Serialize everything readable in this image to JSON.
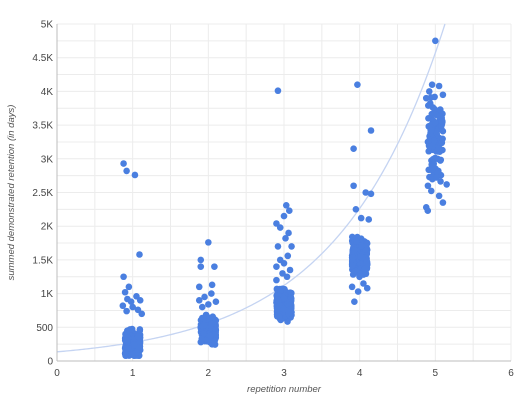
{
  "chart_data": {
    "type": "scatter",
    "xlabel": "repetition number",
    "ylabel": "summed demonstrated retention (in days)",
    "xlim": [
      0,
      6
    ],
    "ylim": [
      0,
      5000
    ],
    "xticks": [
      0,
      1,
      2,
      3,
      4,
      5,
      6
    ],
    "xtick_labels": [
      "0",
      "1",
      "2",
      "3",
      "4",
      "5",
      "6"
    ],
    "yticks": [
      0,
      500,
      1000,
      1500,
      2000,
      2500,
      3000,
      3500,
      4000,
      4500,
      5000
    ],
    "ytick_labels": [
      "0",
      "500",
      "1K",
      "1.5K",
      "2K",
      "2.5K",
      "3K",
      "3.5K",
      "4K",
      "4.5K",
      "5K"
    ],
    "grid": true,
    "legend": "none",
    "colors": {
      "points": "#4a7fe0",
      "trend": "#c5d4f2",
      "grid": "#ececec",
      "axis": "#bdbdbd"
    },
    "trendline": {
      "type": "exponential",
      "a": 136,
      "b": 0.703
    },
    "series": [
      {
        "clusters": [
          {
            "x_center": 1,
            "y_min": 80,
            "y_max": 650,
            "y_mean": 260,
            "count": 260,
            "outliers": [
              [
                0.88,
                2930
              ],
              [
                0.92,
                2820
              ],
              [
                1.03,
                2760
              ],
              [
                1.09,
                1580
              ],
              [
                0.88,
                1250
              ],
              [
                0.95,
                1100
              ],
              [
                0.9,
                1020
              ],
              [
                1.05,
                960
              ],
              [
                0.93,
                920
              ],
              [
                1.1,
                900
              ],
              [
                0.98,
                880
              ],
              [
                0.87,
                820
              ],
              [
                1.0,
                800
              ],
              [
                1.07,
                760
              ],
              [
                0.92,
                740
              ],
              [
                1.12,
                700
              ]
            ]
          },
          {
            "x_center": 2,
            "y_min": 230,
            "y_max": 760,
            "y_mean": 460,
            "count": 230,
            "outliers": [
              [
                2.0,
                1760
              ],
              [
                1.9,
                1500
              ],
              [
                2.08,
                1400
              ],
              [
                1.9,
                1400
              ],
              [
                2.05,
                1130
              ],
              [
                1.88,
                1100
              ],
              [
                2.04,
                1000
              ],
              [
                1.95,
                950
              ],
              [
                1.88,
                900
              ],
              [
                2.1,
                880
              ],
              [
                2.0,
                840
              ],
              [
                1.92,
                800
              ]
            ]
          },
          {
            "x_center": 3,
            "y_min": 520,
            "y_max": 1150,
            "y_mean": 820,
            "count": 280,
            "outliers": [
              [
                2.92,
                4010
              ],
              [
                3.03,
                2310
              ],
              [
                3.07,
                2230
              ],
              [
                3.0,
                2150
              ],
              [
                2.9,
                2040
              ],
              [
                2.95,
                1980
              ],
              [
                3.06,
                1900
              ],
              [
                3.02,
                1820
              ],
              [
                3.1,
                1700
              ],
              [
                2.92,
                1700
              ],
              [
                3.05,
                1560
              ],
              [
                2.95,
                1500
              ],
              [
                3.0,
                1450
              ],
              [
                2.9,
                1400
              ],
              [
                3.08,
                1350
              ],
              [
                2.98,
                1300
              ],
              [
                3.04,
                1250
              ],
              [
                2.9,
                1200
              ]
            ]
          },
          {
            "x_center": 4,
            "y_min": 1150,
            "y_max": 1950,
            "y_mean": 1550,
            "count": 300,
            "outliers": [
              [
                3.97,
                4100
              ],
              [
                4.15,
                3420
              ],
              [
                3.92,
                3150
              ],
              [
                3.92,
                2600
              ],
              [
                4.08,
                2500
              ],
              [
                4.15,
                2480
              ],
              [
                3.95,
                2250
              ],
              [
                4.02,
                2120
              ],
              [
                4.12,
                2100
              ],
              [
                3.9,
                1100
              ],
              [
                3.93,
                880
              ],
              [
                4.1,
                1080
              ],
              [
                4.05,
                1150
              ],
              [
                3.98,
                1030
              ]
            ]
          },
          {
            "x_center": 5,
            "y_min": 2250,
            "y_max": 4100,
            "y_mean": 3300,
            "count": 130,
            "outliers": [
              [
                5.0,
                4750
              ],
              [
                5.05,
                4080
              ],
              [
                4.92,
                4000
              ],
              [
                5.1,
                3950
              ],
              [
                4.88,
                3900
              ],
              [
                4.88,
                2280
              ],
              [
                4.9,
                2230
              ],
              [
                5.1,
                2350
              ],
              [
                5.05,
                2450
              ],
              [
                5.15,
                2620
              ]
            ]
          }
        ]
      }
    ]
  }
}
